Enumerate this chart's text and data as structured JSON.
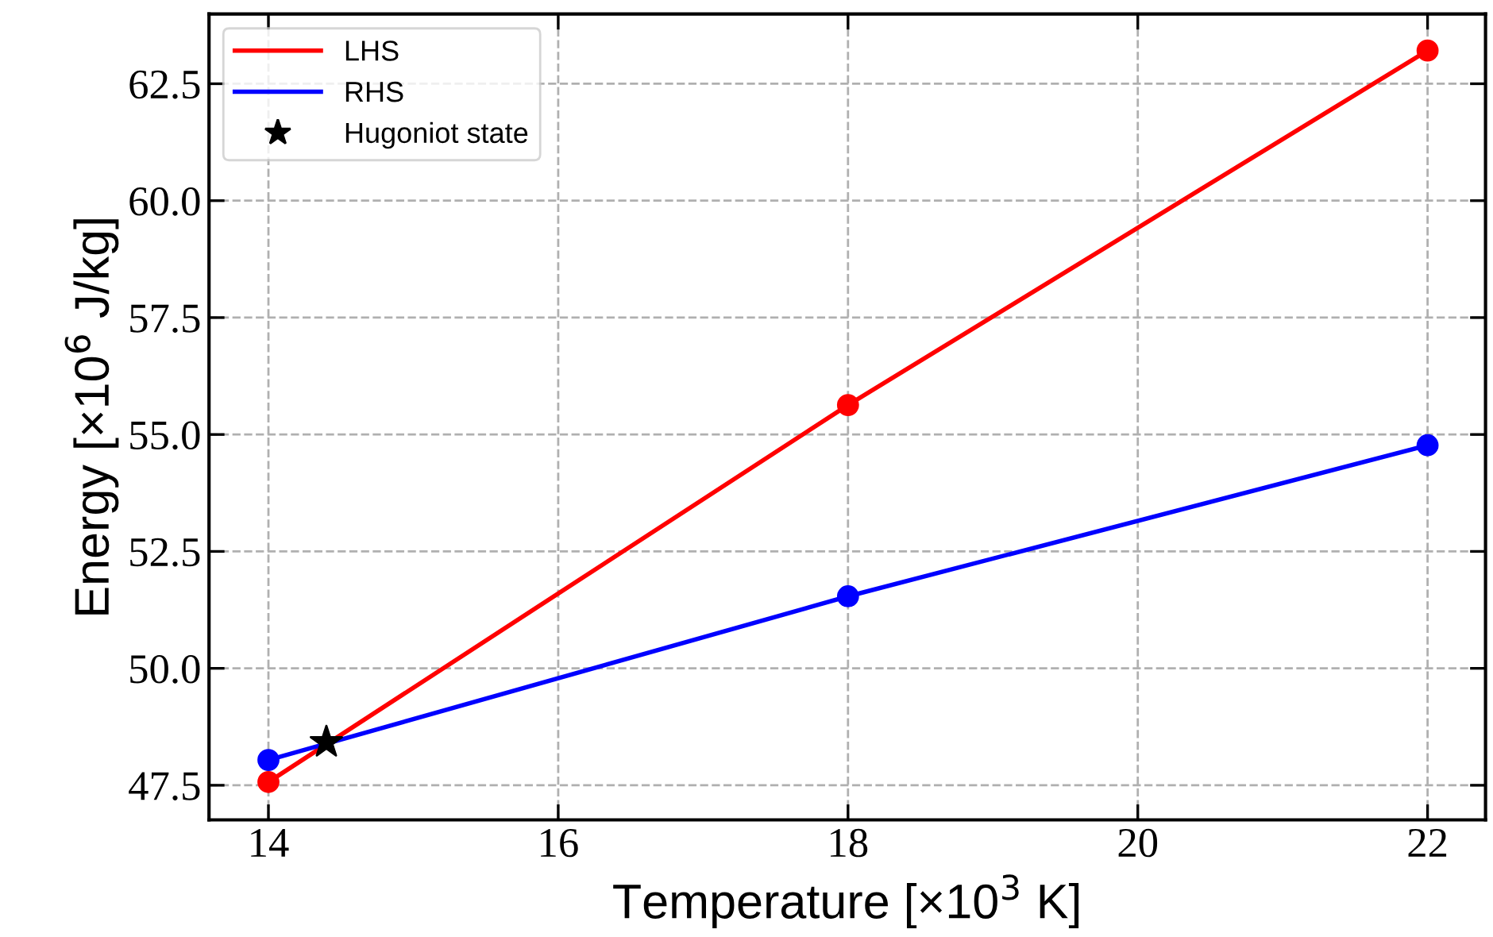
{
  "chart_data": {
    "type": "line",
    "xlabel": "Temperature [×10$^{3}$ K]",
    "ylabel": "Energy [×10$^{6}$ J/kg]",
    "xlim": [
      13.59,
      22.4
    ],
    "xticks": [
      14,
      16,
      18,
      20,
      22
    ],
    "ylim": [
      46.76,
      63.99
    ],
    "yticks": [
      47.5,
      {
        "value": 50,
        "label": "50.0"
      },
      52.5,
      {
        "value": 55,
        "label": "55.0"
      },
      57.5,
      {
        "value": 60,
        "label": "60.0"
      },
      62.5
    ],
    "grid": true,
    "legend": "top left",
    "line_style": "solid",
    "series": [
      {
        "name": "LHS",
        "color": "#ff0000",
        "marker": "circle",
        "x": [
          14,
          18,
          22
        ],
        "values": [
          47.57,
          55.63,
          63.21
        ]
      },
      {
        "name": "RHS",
        "color": "#0000ff",
        "marker": "circle",
        "x": [
          14,
          18,
          22
        ],
        "values": [
          48.04,
          51.54,
          54.77
        ]
      },
      {
        "name": "Hugoniot state",
        "type": "scatter",
        "color": "#000000",
        "marker": "star",
        "x": [
          14.4
        ],
        "values": [
          48.42
        ]
      }
    ]
  }
}
